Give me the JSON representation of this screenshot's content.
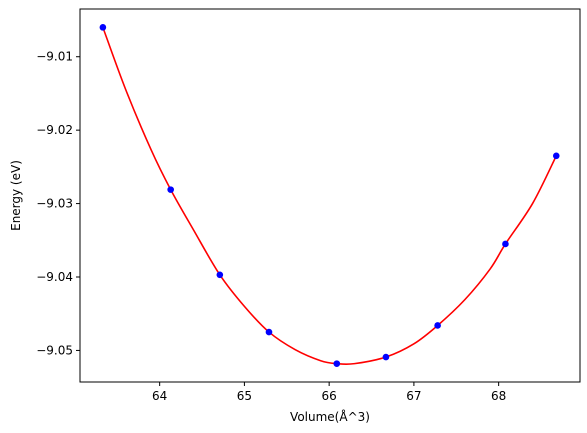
{
  "chart_data": {
    "type": "scatter",
    "title": "",
    "xlabel": "Volume(Å^3)",
    "ylabel": "Energy (eV)",
    "xlim": [
      63.06,
      68.96
    ],
    "ylim": [
      -9.0543,
      -9.0035
    ],
    "xticks": [
      64,
      65,
      66,
      67,
      68
    ],
    "xtick_labels": [
      "64",
      "65",
      "66",
      "67",
      "68"
    ],
    "yticks": [
      -9.01,
      -9.02,
      -9.03,
      -9.04,
      -9.05
    ],
    "ytick_labels": [
      "−9.01",
      "−9.02",
      "−9.03",
      "−9.04",
      "−9.05"
    ],
    "grid": false,
    "series": [
      {
        "kind": "points",
        "color": "#0000ff",
        "marker": "circle",
        "points": [
          {
            "x": 63.33,
            "y": -9.006
          },
          {
            "x": 64.13,
            "y": -9.0281
          },
          {
            "x": 64.71,
            "y": -9.0397
          },
          {
            "x": 65.29,
            "y": -9.0475
          },
          {
            "x": 66.09,
            "y": -9.0518
          },
          {
            "x": 66.67,
            "y": -9.0509
          },
          {
            "x": 67.28,
            "y": -9.0466
          },
          {
            "x": 68.08,
            "y": -9.0355
          },
          {
            "x": 68.68,
            "y": -9.0235
          }
        ]
      },
      {
        "kind": "fit-curve",
        "color": "#ff0000",
        "points": [
          {
            "x": 63.33,
            "y": -9.006
          },
          {
            "x": 63.6,
            "y": -9.0145
          },
          {
            "x": 63.9,
            "y": -9.0227
          },
          {
            "x": 64.13,
            "y": -9.0281
          },
          {
            "x": 64.4,
            "y": -9.0336
          },
          {
            "x": 64.71,
            "y": -9.0397
          },
          {
            "x": 65.0,
            "y": -9.044
          },
          {
            "x": 65.29,
            "y": -9.0475
          },
          {
            "x": 65.6,
            "y": -9.0499
          },
          {
            "x": 65.9,
            "y": -9.0514
          },
          {
            "x": 66.09,
            "y": -9.0518
          },
          {
            "x": 66.3,
            "y": -9.0518
          },
          {
            "x": 66.67,
            "y": -9.0509
          },
          {
            "x": 67.0,
            "y": -9.0491
          },
          {
            "x": 67.28,
            "y": -9.0466
          },
          {
            "x": 67.6,
            "y": -9.0431
          },
          {
            "x": 67.9,
            "y": -9.0389
          },
          {
            "x": 68.08,
            "y": -9.0355
          },
          {
            "x": 68.4,
            "y": -9.03
          },
          {
            "x": 68.68,
            "y": -9.0235
          }
        ]
      }
    ]
  }
}
